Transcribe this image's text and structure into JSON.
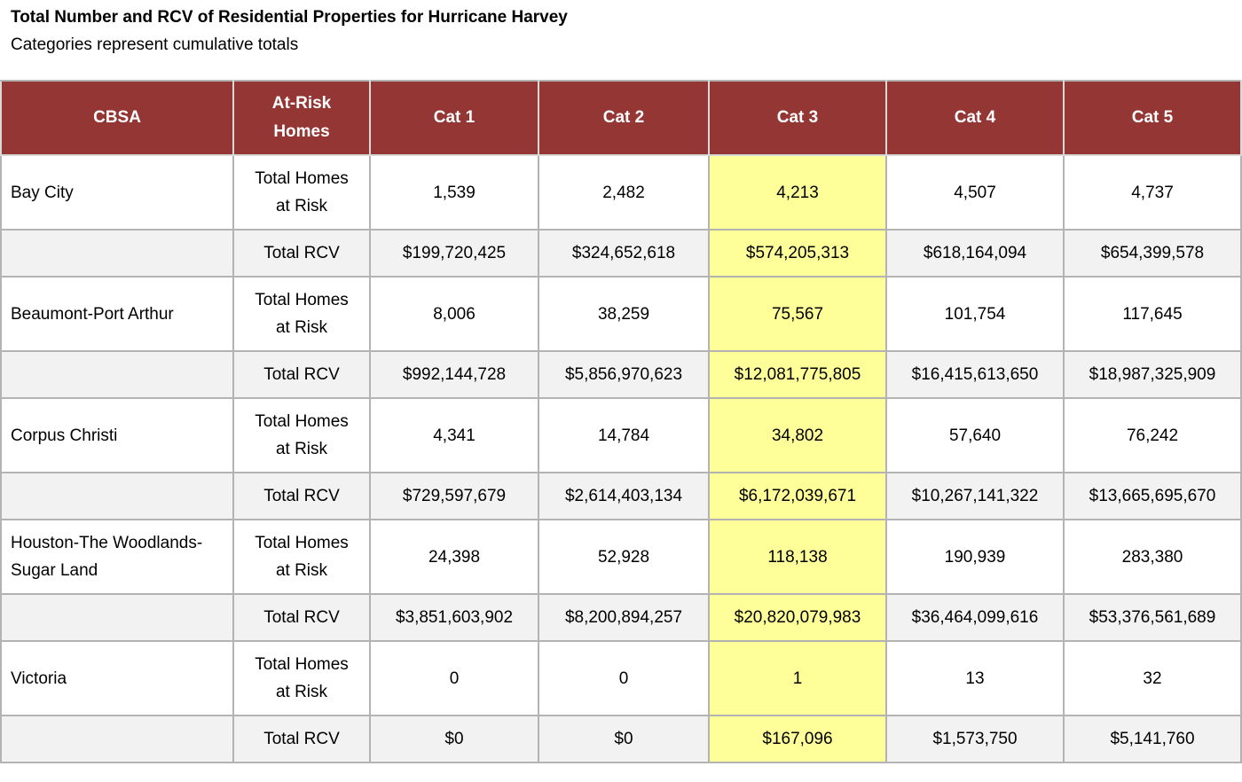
{
  "title": "Total Number and RCV of Residential Properties for Hurricane Harvey",
  "subtitle": "Categories represent cumulative totals",
  "colors": {
    "header_bg": "#943634",
    "header_text": "#ffffff",
    "highlight": "#ffff99",
    "alt_row": "#f2f2f2"
  },
  "headers": {
    "cbsa": "CBSA",
    "at_risk_1": "At-Risk",
    "at_risk_2": "Homes",
    "cat1": "Cat 1",
    "cat2": "Cat 2",
    "cat3": "Cat 3",
    "cat4": "Cat 4",
    "cat5": "Cat 5"
  },
  "highlighted_column": "Cat 3",
  "rows": [
    {
      "cbsa_1": "Bay City",
      "cbsa_2": "",
      "homes_label_1": "Total Homes",
      "homes_label_2": "at Risk",
      "homes": [
        "1,539",
        "2,482",
        "4,213",
        "4,507",
        "4,737"
      ],
      "rcv_label": "Total RCV",
      "rcv": [
        "$199,720,425",
        "$324,652,618",
        "$574,205,313",
        "$618,164,094",
        "$654,399,578"
      ]
    },
    {
      "cbsa_1": "Beaumont-Port Arthur",
      "cbsa_2": "",
      "homes_label_1": "Total Homes",
      "homes_label_2": "at Risk",
      "homes": [
        "8,006",
        "38,259",
        "75,567",
        "101,754",
        "117,645"
      ],
      "rcv_label": "Total RCV",
      "rcv": [
        "$992,144,728",
        "$5,856,970,623",
        "$12,081,775,805",
        "$16,415,613,650",
        "$18,987,325,909"
      ]
    },
    {
      "cbsa_1": "Corpus Christi",
      "cbsa_2": "",
      "homes_label_1": "Total Homes",
      "homes_label_2": "at Risk",
      "homes": [
        "4,341",
        "14,784",
        "34,802",
        "57,640",
        "76,242"
      ],
      "rcv_label": "Total RCV",
      "rcv": [
        "$729,597,679",
        "$2,614,403,134",
        "$6,172,039,671",
        "$10,267,141,322",
        "$13,665,695,670"
      ]
    },
    {
      "cbsa_1": "Houston-The Woodlands-",
      "cbsa_2": "Sugar Land",
      "homes_label_1": "Total Homes",
      "homes_label_2": "at Risk",
      "homes": [
        "24,398",
        "52,928",
        "118,138",
        "190,939",
        "283,380"
      ],
      "rcv_label": "Total RCV",
      "rcv": [
        "$3,851,603,902",
        "$8,200,894,257",
        "$20,820,079,983",
        "$36,464,099,616",
        "$53,376,561,689"
      ]
    },
    {
      "cbsa_1": "Victoria",
      "cbsa_2": "",
      "homes_label_1": "Total Homes",
      "homes_label_2": "at Risk",
      "homes": [
        "0",
        "0",
        "1",
        "13",
        "32"
      ],
      "rcv_label": "Total RCV",
      "rcv": [
        "$0",
        "$0",
        "$167,096",
        "$1,573,750",
        "$5,141,760"
      ]
    }
  ]
}
